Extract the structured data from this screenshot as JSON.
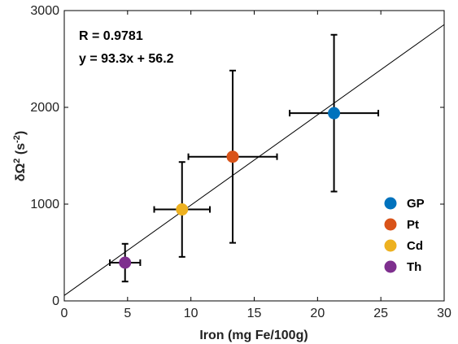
{
  "chart_data": {
    "type": "scatter",
    "title": "",
    "xlabel": "Iron (mg Fe/100g)",
    "ylabel_base": "δΩ",
    "ylabel_sup": "2",
    "ylabel_unit": "(s",
    "ylabel_unit_sup": "-2",
    "ylabel_close": ")",
    "xlim": [
      0,
      30
    ],
    "ylim": [
      0,
      3000
    ],
    "xticks": [
      0,
      5,
      10,
      15,
      20,
      25,
      30
    ],
    "yticks": [
      0,
      1000,
      2000,
      3000
    ],
    "grid": false,
    "legend_position": "bottom-right",
    "series": [
      {
        "name": "GP",
        "x": 21.3,
        "y": 1940,
        "xerr": 3.5,
        "yerr": 810,
        "color": "#0072BD"
      },
      {
        "name": "Pt",
        "x": 13.3,
        "y": 1490,
        "xerr": 3.5,
        "yerr": 890,
        "color": "#D95319"
      },
      {
        "name": "Cd",
        "x": 9.3,
        "y": 945,
        "xerr": 2.2,
        "yerr": 490,
        "color": "#EDB120"
      },
      {
        "name": "Th",
        "x": 4.8,
        "y": 395,
        "xerr": 1.2,
        "yerr": 195,
        "color": "#7E2F8E"
      }
    ],
    "fit": {
      "slope": 93.3,
      "intercept": 56.2
    },
    "annotations": {
      "r": "R = 0.9781",
      "equation": "y = 93.3x + 56.2"
    }
  }
}
